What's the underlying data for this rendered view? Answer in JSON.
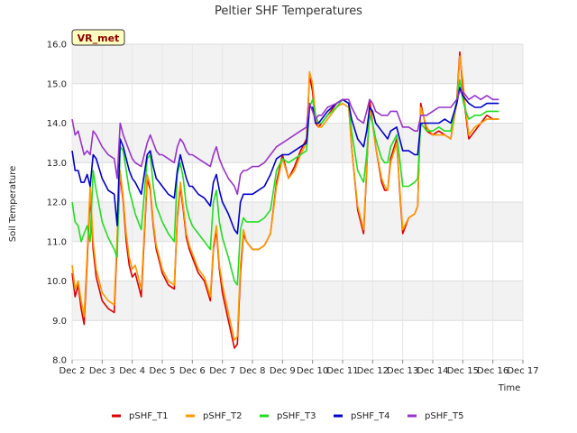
{
  "chart_data": {
    "type": "line",
    "title": "Peltier SHF Temperatures",
    "xlabel": "Time",
    "ylabel": "Soil Temperature",
    "site_tag": "VR_met",
    "xlim": [
      2,
      17
    ],
    "ylim": [
      8.0,
      16.0
    ],
    "x_ticks": [
      {
        "value": 2,
        "label": "Dec 2"
      },
      {
        "value": 3,
        "label": "Dec 3"
      },
      {
        "value": 4,
        "label": "Dec 4"
      },
      {
        "value": 5,
        "label": "Dec 5"
      },
      {
        "value": 6,
        "label": "Dec 6"
      },
      {
        "value": 7,
        "label": "Dec 7"
      },
      {
        "value": 8,
        "label": "Dec 8"
      },
      {
        "value": 9,
        "label": "Dec 9"
      },
      {
        "value": 10,
        "label": "Dec 10"
      },
      {
        "value": 11,
        "label": "Dec 11"
      },
      {
        "value": 12,
        "label": "Dec 12"
      },
      {
        "value": 13,
        "label": "Dec 13"
      },
      {
        "value": 14,
        "label": "Dec 14"
      },
      {
        "value": 15,
        "label": "Dec 15"
      },
      {
        "value": 16,
        "label": "Dec 16"
      },
      {
        "value": 17,
        "label": "Dec 17"
      }
    ],
    "y_ticks": [
      {
        "value": 8,
        "label": "8.0"
      },
      {
        "value": 9,
        "label": "9.0"
      },
      {
        "value": 10,
        "label": "10.0"
      },
      {
        "value": 11,
        "label": "11.0"
      },
      {
        "value": 12,
        "label": "12.0"
      },
      {
        "value": 13,
        "label": "13.0"
      },
      {
        "value": 14,
        "label": "14.0"
      },
      {
        "value": 15,
        "label": "15.0"
      },
      {
        "value": 16,
        "label": "16.0"
      }
    ],
    "grid": true,
    "legend_position": "bottom",
    "series": [
      {
        "name": "pSHF_T1",
        "color": "#dd0000",
        "x": [
          2.0,
          2.1,
          2.2,
          2.3,
          2.4,
          2.5,
          2.6,
          2.7,
          2.8,
          3.0,
          3.2,
          3.4,
          3.5,
          3.6,
          3.7,
          3.8,
          3.9,
          4.0,
          4.1,
          4.3,
          4.5,
          4.6,
          4.7,
          4.8,
          4.9,
          5.0,
          5.2,
          5.4,
          5.5,
          5.6,
          5.7,
          5.8,
          5.9,
          6.0,
          6.2,
          6.4,
          6.6,
          6.7,
          6.8,
          6.9,
          7.0,
          7.2,
          7.4,
          7.5,
          7.6,
          7.7,
          7.8,
          8.0,
          8.2,
          8.4,
          8.6,
          8.8,
          9.0,
          9.2,
          9.4,
          9.6,
          9.8,
          9.9,
          10.0,
          10.1,
          10.2,
          10.3,
          10.5,
          10.8,
          11.0,
          11.2,
          11.3,
          11.5,
          11.7,
          11.8,
          11.9,
          12.0,
          12.1,
          12.3,
          12.4,
          12.5,
          12.6,
          12.8,
          12.9,
          13.0,
          13.2,
          13.4,
          13.5,
          13.6,
          13.8,
          14.0,
          14.2,
          14.4,
          14.6,
          14.8,
          14.9,
          15.0,
          15.1,
          15.2,
          15.4,
          15.6,
          15.8,
          16.0,
          16.2
        ],
        "y": [
          10.2,
          9.6,
          9.9,
          9.3,
          8.9,
          10.5,
          12.2,
          10.8,
          10.1,
          9.5,
          9.3,
          9.2,
          11.0,
          12.7,
          12.0,
          11.0,
          10.4,
          10.1,
          10.2,
          9.6,
          12.6,
          12.3,
          11.4,
          10.8,
          10.5,
          10.2,
          9.9,
          9.8,
          11.6,
          12.4,
          11.8,
          11.1,
          10.8,
          10.6,
          10.2,
          10.0,
          9.5,
          10.8,
          11.3,
          10.3,
          9.7,
          9.0,
          8.3,
          8.4,
          10.2,
          11.2,
          11.0,
          10.8,
          10.8,
          10.9,
          11.2,
          12.5,
          13.2,
          12.6,
          12.9,
          13.3,
          13.6,
          15.2,
          14.8,
          14.0,
          13.9,
          14.0,
          14.2,
          14.5,
          14.6,
          14.5,
          13.4,
          11.8,
          11.2,
          12.8,
          14.6,
          14.0,
          13.4,
          12.5,
          12.3,
          12.3,
          13.1,
          13.6,
          12.3,
          11.2,
          11.6,
          11.7,
          11.9,
          14.5,
          13.8,
          13.7,
          13.8,
          13.7,
          13.6,
          14.6,
          15.8,
          14.9,
          14.2,
          13.6,
          13.8,
          14.0,
          14.2,
          14.1,
          14.1
        ]
      },
      {
        "name": "pSHF_T2",
        "color": "#ff9900",
        "x": [
          2.0,
          2.1,
          2.2,
          2.3,
          2.4,
          2.5,
          2.6,
          2.7,
          2.8,
          3.0,
          3.2,
          3.4,
          3.5,
          3.6,
          3.7,
          3.8,
          3.9,
          4.0,
          4.1,
          4.3,
          4.5,
          4.6,
          4.7,
          4.8,
          4.9,
          5.0,
          5.2,
          5.4,
          5.5,
          5.6,
          5.7,
          5.8,
          5.9,
          6.0,
          6.2,
          6.4,
          6.6,
          6.7,
          6.8,
          6.9,
          7.0,
          7.2,
          7.4,
          7.5,
          7.6,
          7.7,
          7.8,
          8.0,
          8.2,
          8.4,
          8.6,
          8.8,
          9.0,
          9.2,
          9.4,
          9.6,
          9.8,
          9.9,
          10.0,
          10.1,
          10.2,
          10.3,
          10.5,
          10.8,
          11.0,
          11.2,
          11.3,
          11.5,
          11.7,
          11.8,
          11.9,
          12.0,
          12.1,
          12.3,
          12.4,
          12.5,
          12.6,
          12.8,
          12.9,
          13.0,
          13.2,
          13.4,
          13.5,
          13.6,
          13.8,
          14.0,
          14.2,
          14.4,
          14.6,
          14.8,
          14.9,
          15.0,
          15.1,
          15.2,
          15.4,
          15.6,
          15.8,
          16.0,
          16.2
        ],
        "y": [
          10.4,
          9.8,
          10.0,
          9.5,
          9.1,
          10.7,
          12.4,
          11.0,
          10.3,
          9.7,
          9.5,
          9.4,
          11.2,
          12.8,
          12.1,
          11.2,
          10.6,
          10.3,
          10.4,
          9.8,
          12.7,
          12.4,
          11.5,
          10.9,
          10.6,
          10.3,
          10.0,
          9.9,
          11.7,
          12.5,
          11.9,
          11.2,
          10.9,
          10.7,
          10.3,
          10.1,
          9.6,
          10.9,
          11.4,
          10.4,
          9.9,
          9.2,
          8.5,
          8.6,
          10.4,
          11.3,
          11.0,
          10.8,
          10.8,
          10.9,
          11.2,
          12.4,
          13.1,
          12.6,
          12.8,
          13.2,
          13.5,
          15.3,
          15.0,
          14.2,
          13.9,
          13.9,
          14.1,
          14.4,
          14.5,
          14.4,
          13.4,
          11.9,
          11.3,
          12.9,
          14.4,
          14.0,
          13.4,
          12.6,
          12.4,
          12.3,
          13.0,
          13.5,
          12.4,
          11.3,
          11.6,
          11.7,
          11.9,
          14.4,
          13.9,
          13.7,
          13.7,
          13.7,
          13.6,
          14.5,
          15.7,
          15.1,
          14.3,
          13.7,
          13.9,
          14.0,
          14.1,
          14.1,
          14.1
        ]
      },
      {
        "name": "pSHF_T3",
        "color": "#22dd22",
        "x": [
          2.0,
          2.1,
          2.2,
          2.3,
          2.4,
          2.5,
          2.6,
          2.7,
          2.8,
          3.0,
          3.2,
          3.4,
          3.5,
          3.6,
          3.7,
          3.8,
          3.9,
          4.0,
          4.1,
          4.3,
          4.5,
          4.6,
          4.7,
          4.8,
          4.9,
          5.0,
          5.2,
          5.4,
          5.5,
          5.6,
          5.7,
          5.8,
          5.9,
          6.0,
          6.2,
          6.4,
          6.6,
          6.7,
          6.8,
          6.9,
          7.0,
          7.2,
          7.4,
          7.5,
          7.6,
          7.7,
          7.8,
          8.0,
          8.2,
          8.4,
          8.6,
          8.8,
          9.0,
          9.2,
          9.4,
          9.6,
          9.8,
          9.9,
          10.0,
          10.1,
          10.2,
          10.3,
          10.5,
          10.8,
          11.0,
          11.2,
          11.3,
          11.5,
          11.7,
          11.8,
          11.9,
          12.0,
          12.1,
          12.3,
          12.4,
          12.5,
          12.6,
          12.8,
          12.9,
          13.0,
          13.2,
          13.4,
          13.5,
          13.6,
          13.8,
          14.0,
          14.2,
          14.4,
          14.6,
          14.8,
          14.9,
          15.0,
          15.1,
          15.2,
          15.4,
          15.6,
          15.8,
          16.0,
          16.2
        ],
        "y": [
          12.0,
          11.5,
          11.4,
          11.0,
          11.2,
          11.4,
          11.0,
          12.8,
          12.3,
          11.5,
          11.1,
          10.8,
          10.6,
          13.4,
          13.3,
          12.8,
          12.3,
          12.0,
          11.7,
          11.3,
          13.1,
          13.2,
          12.4,
          11.9,
          11.7,
          11.5,
          11.2,
          11.0,
          12.7,
          13.0,
          12.6,
          11.9,
          11.6,
          11.4,
          11.2,
          11.0,
          10.8,
          12.0,
          12.3,
          11.5,
          11.1,
          10.6,
          10.0,
          9.9,
          11.3,
          11.6,
          11.5,
          11.5,
          11.5,
          11.6,
          11.8,
          12.8,
          13.1,
          13.0,
          13.1,
          13.2,
          13.3,
          14.4,
          14.6,
          14.2,
          14.0,
          14.0,
          14.2,
          14.4,
          14.6,
          14.5,
          13.8,
          12.8,
          12.5,
          13.2,
          14.2,
          14.0,
          13.6,
          13.1,
          13.0,
          13.0,
          13.4,
          13.7,
          13.1,
          12.4,
          12.4,
          12.5,
          12.6,
          14.0,
          13.8,
          13.8,
          13.9,
          13.8,
          13.8,
          14.6,
          15.1,
          14.6,
          14.3,
          14.1,
          14.2,
          14.2,
          14.3,
          14.3,
          14.3
        ]
      },
      {
        "name": "pSHF_T4",
        "color": "#0000cc",
        "x": [
          2.0,
          2.1,
          2.2,
          2.3,
          2.4,
          2.5,
          2.6,
          2.7,
          2.8,
          3.0,
          3.2,
          3.4,
          3.5,
          3.6,
          3.7,
          3.8,
          3.9,
          4.0,
          4.1,
          4.3,
          4.5,
          4.6,
          4.7,
          4.8,
          4.9,
          5.0,
          5.2,
          5.4,
          5.5,
          5.6,
          5.7,
          5.8,
          5.9,
          6.0,
          6.2,
          6.4,
          6.6,
          6.7,
          6.8,
          6.9,
          7.0,
          7.2,
          7.4,
          7.5,
          7.6,
          7.7,
          7.8,
          8.0,
          8.2,
          8.4,
          8.6,
          8.8,
          9.0,
          9.2,
          9.4,
          9.6,
          9.8,
          9.9,
          10.0,
          10.1,
          10.2,
          10.3,
          10.5,
          10.8,
          11.0,
          11.2,
          11.3,
          11.5,
          11.7,
          11.8,
          11.9,
          12.0,
          12.1,
          12.3,
          12.4,
          12.5,
          12.6,
          12.8,
          12.9,
          13.0,
          13.2,
          13.4,
          13.5,
          13.6,
          13.8,
          14.0,
          14.2,
          14.4,
          14.6,
          14.8,
          14.9,
          15.0,
          15.1,
          15.2,
          15.4,
          15.6,
          15.8,
          16.0,
          16.2
        ],
        "y": [
          13.3,
          12.8,
          12.8,
          12.5,
          12.5,
          12.7,
          12.4,
          13.2,
          13.1,
          12.6,
          12.3,
          12.2,
          11.4,
          13.6,
          13.4,
          13.1,
          12.8,
          12.6,
          12.5,
          12.2,
          13.2,
          13.3,
          12.9,
          12.6,
          12.5,
          12.4,
          12.2,
          12.1,
          12.8,
          13.2,
          12.9,
          12.6,
          12.4,
          12.4,
          12.2,
          12.1,
          11.9,
          12.5,
          12.7,
          12.3,
          12.0,
          11.7,
          11.3,
          11.2,
          12.0,
          12.2,
          12.2,
          12.2,
          12.3,
          12.4,
          12.7,
          13.1,
          13.2,
          13.2,
          13.3,
          13.4,
          13.5,
          14.4,
          14.4,
          14.0,
          14.0,
          14.1,
          14.3,
          14.5,
          14.6,
          14.5,
          14.1,
          13.6,
          13.4,
          13.8,
          14.4,
          14.3,
          14.0,
          13.8,
          13.7,
          13.6,
          13.8,
          13.9,
          13.6,
          13.3,
          13.3,
          13.2,
          13.2,
          14.0,
          14.0,
          14.0,
          14.0,
          14.1,
          14.0,
          14.5,
          14.9,
          14.7,
          14.6,
          14.5,
          14.4,
          14.4,
          14.5,
          14.5,
          14.5
        ]
      },
      {
        "name": "pSHF_T5",
        "color": "#9933cc",
        "x": [
          2.0,
          2.1,
          2.2,
          2.3,
          2.4,
          2.5,
          2.6,
          2.7,
          2.8,
          3.0,
          3.2,
          3.4,
          3.5,
          3.6,
          3.7,
          3.8,
          3.9,
          4.0,
          4.1,
          4.3,
          4.5,
          4.6,
          4.7,
          4.8,
          4.9,
          5.0,
          5.2,
          5.4,
          5.5,
          5.6,
          5.7,
          5.8,
          5.9,
          6.0,
          6.2,
          6.4,
          6.6,
          6.7,
          6.8,
          6.9,
          7.0,
          7.2,
          7.4,
          7.5,
          7.6,
          7.7,
          7.8,
          8.0,
          8.2,
          8.4,
          8.6,
          8.8,
          9.0,
          9.2,
          9.4,
          9.6,
          9.8,
          9.9,
          10.0,
          10.1,
          10.2,
          10.3,
          10.5,
          10.8,
          11.0,
          11.2,
          11.3,
          11.5,
          11.7,
          11.8,
          11.9,
          12.0,
          12.1,
          12.3,
          12.4,
          12.5,
          12.6,
          12.8,
          12.9,
          13.0,
          13.2,
          13.4,
          13.5,
          13.6,
          13.8,
          14.0,
          14.2,
          14.4,
          14.6,
          14.8,
          14.9,
          15.0,
          15.1,
          15.2,
          15.4,
          15.6,
          15.8,
          16.0,
          16.2
        ],
        "y": [
          14.1,
          13.7,
          13.8,
          13.5,
          13.2,
          13.3,
          13.2,
          13.8,
          13.7,
          13.4,
          13.2,
          13.1,
          12.6,
          14.0,
          13.7,
          13.5,
          13.3,
          13.1,
          13.0,
          12.9,
          13.5,
          13.7,
          13.5,
          13.3,
          13.2,
          13.2,
          13.1,
          13.0,
          13.4,
          13.6,
          13.5,
          13.3,
          13.2,
          13.2,
          13.1,
          13.0,
          12.9,
          13.2,
          13.4,
          13.1,
          12.9,
          12.6,
          12.4,
          12.2,
          12.7,
          12.8,
          12.8,
          12.9,
          12.9,
          13.0,
          13.2,
          13.4,
          13.5,
          13.6,
          13.7,
          13.8,
          13.9,
          14.5,
          14.3,
          14.1,
          14.2,
          14.2,
          14.4,
          14.5,
          14.6,
          14.6,
          14.4,
          14.1,
          14.0,
          14.3,
          14.6,
          14.5,
          14.3,
          14.2,
          14.2,
          14.2,
          14.3,
          14.3,
          14.1,
          13.9,
          13.9,
          13.8,
          13.8,
          14.2,
          14.2,
          14.3,
          14.4,
          14.4,
          14.4,
          14.6,
          14.8,
          14.8,
          14.7,
          14.6,
          14.7,
          14.6,
          14.7,
          14.6,
          14.6
        ]
      }
    ]
  }
}
